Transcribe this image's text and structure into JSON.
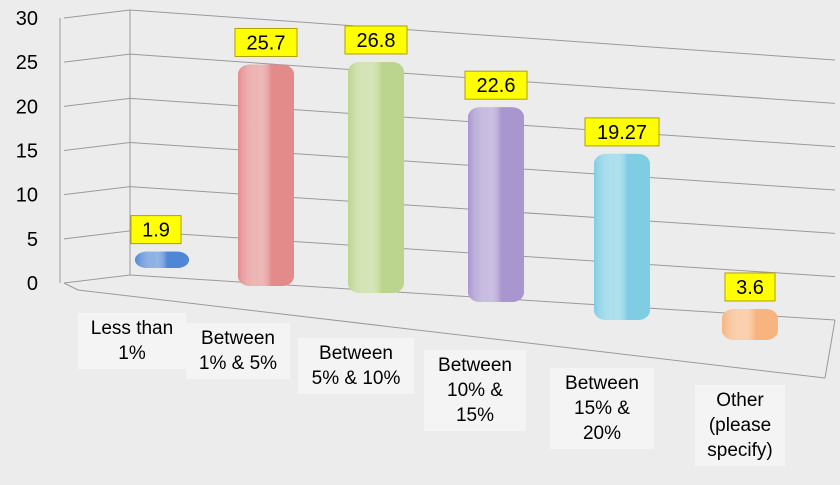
{
  "chart_data": {
    "type": "bar",
    "categories": [
      "Less than\n1%",
      "Between\n1% & 5%",
      "Between\n5% & 10%",
      "Between\n10% &\n15%",
      "Between\n15% &\n20%",
      "Other\n(please\nspecify)"
    ],
    "values": [
      1.9,
      25.7,
      26.8,
      22.6,
      19.27,
      3.6
    ],
    "value_labels": [
      "1.9",
      "25.7",
      "26.8",
      "22.6",
      "19.27",
      "3.6"
    ],
    "ylim": [
      0,
      30
    ],
    "yticks": [
      "0",
      "5",
      "10",
      "15",
      "20",
      "25",
      "30"
    ],
    "colors": [
      "#4f86d6",
      "#e38b8b",
      "#bcd58e",
      "#a996cf",
      "#7fcde3",
      "#f7b47f"
    ],
    "label_bg": "#ffff00",
    "grid": true,
    "legend": "none"
  }
}
